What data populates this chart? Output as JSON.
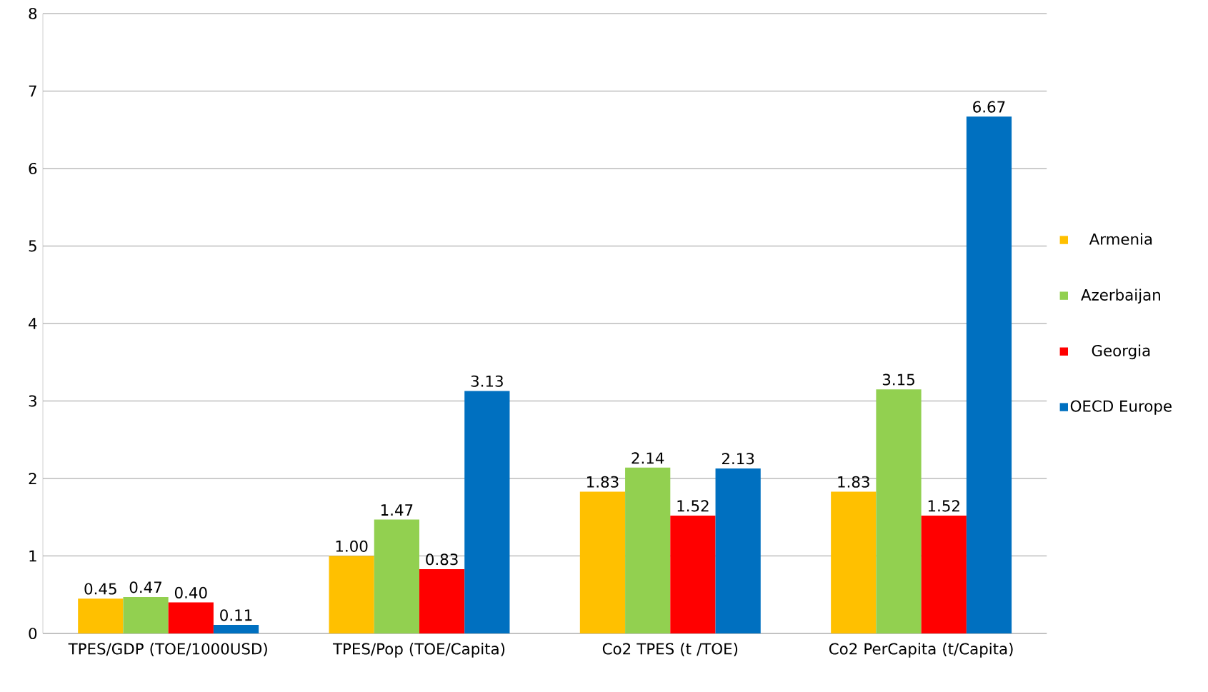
{
  "chart_data": {
    "type": "bar",
    "categories": [
      "TPES/GDP (TOE/1000USD)",
      "TPES/Pop (TOE/Capita)",
      "Co2 TPES (t /TOE)",
      "Co2 PerCapita (t/Capita)"
    ],
    "series": [
      {
        "name": "Armenia",
        "color": "#ffc000",
        "values": [
          0.45,
          1.0,
          1.83,
          1.83
        ],
        "value_labels": [
          "0.45",
          "1.00",
          "1.83",
          "1.83"
        ]
      },
      {
        "name": "Azerbaijan",
        "color": "#92d050",
        "values": [
          0.47,
          1.47,
          2.14,
          3.15
        ],
        "value_labels": [
          "0.47",
          "1.47",
          "2.14",
          "3.15"
        ]
      },
      {
        "name": "Georgia",
        "color": "#ff0000",
        "values": [
          0.4,
          0.83,
          1.52,
          1.52
        ],
        "value_labels": [
          "0.40",
          "0.83",
          "1.52",
          "1.52"
        ]
      },
      {
        "name": "OECD Europe",
        "color": "#0070c0",
        "values": [
          0.11,
          3.13,
          2.13,
          6.67
        ],
        "value_labels": [
          "0.11",
          "3.13",
          "2.13",
          "6.67"
        ]
      }
    ],
    "ylim": [
      0,
      8
    ],
    "yticks": [
      0,
      1,
      2,
      3,
      4,
      5,
      6,
      7,
      8
    ],
    "grid": "y",
    "legend": "right"
  }
}
